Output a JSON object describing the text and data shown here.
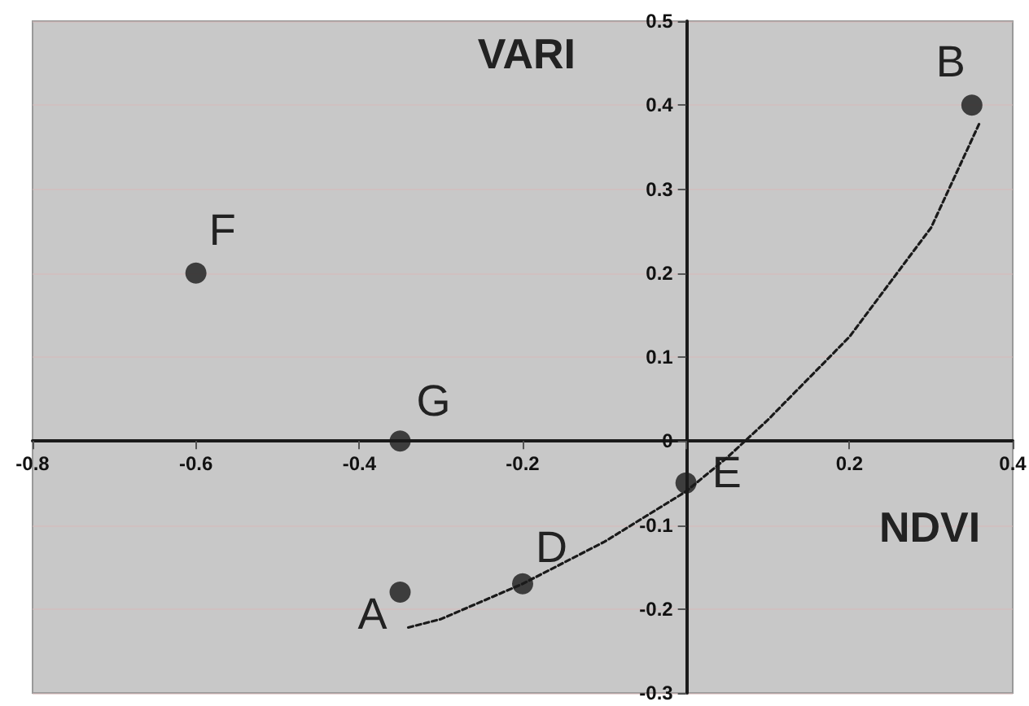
{
  "chart_data": {
    "type": "scatter",
    "xlabel": "NDVI",
    "ylabel": "VARI",
    "xlim": [
      -0.8,
      0.4
    ],
    "xticks": [
      -0.8,
      -0.6,
      -0.4,
      -0.2,
      {
        "value": 0,
        "label": null
      },
      0.2,
      0.4
    ],
    "ylim": [
      -0.3,
      0.5
    ],
    "yticks": [
      -0.3,
      -0.2,
      -0.1,
      0,
      0.1,
      0.2,
      0.3,
      0.4,
      0.5
    ],
    "grid": "y",
    "marker": "circle",
    "series": [
      {
        "color": "#1a1a1a",
        "x": [
          -0.35,
          0.35,
          -0.2,
          0,
          -0.6,
          -0.35
        ],
        "values": [
          -0.18,
          0.4,
          -0.17,
          -0.05,
          0.2,
          0
        ]
      },
      {
        "type": "line",
        "color": "#1a1a1a",
        "line_style": "dashed",
        "marker": "none",
        "x": [
          -0.34,
          -0.3,
          -0.2,
          -0.1,
          0,
          0.05,
          0.1,
          0.2,
          0.3,
          0.36
        ],
        "values": [
          -0.222,
          -0.212,
          -0.17,
          -0.12,
          -0.06,
          -0.02,
          0.025,
          0.124,
          0.254,
          0.38
        ]
      }
    ],
    "annotations": [
      {
        "text": "A",
        "x": -0.35,
        "y": -0.18
      },
      {
        "text": "B",
        "x": 0.35,
        "y": 0.4
      },
      {
        "text": "D",
        "x": -0.2,
        "y": -0.17
      },
      {
        "text": "E",
        "x": 0,
        "y": -0.05
      },
      {
        "text": "F",
        "x": -0.6,
        "y": 0.2
      },
      {
        "text": "G",
        "x": -0.35,
        "y": 0
      }
    ]
  }
}
